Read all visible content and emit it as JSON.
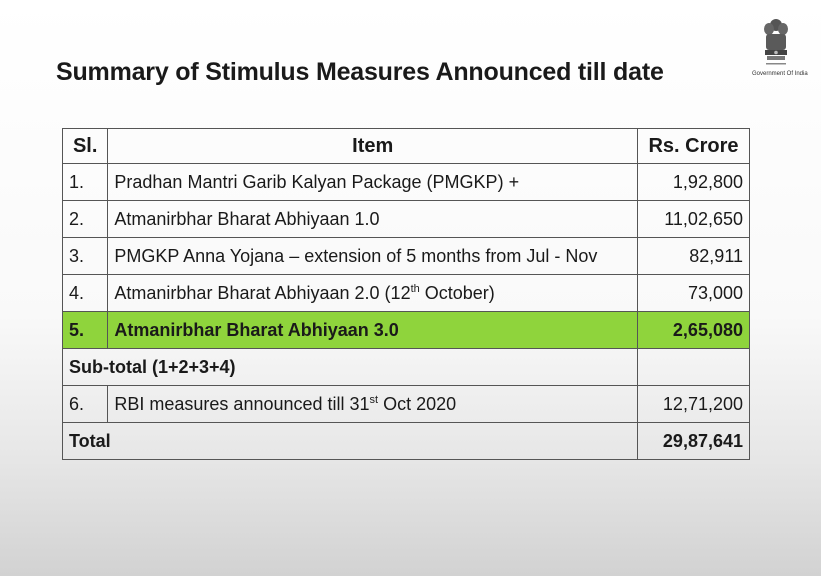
{
  "slide": {
    "title": "Summary of Stimulus Measures Announced till date",
    "emblem_caption": "Government Of India"
  },
  "table": {
    "headers": {
      "sl": "Sl.",
      "item": "Item",
      "value": "Rs. Crore"
    },
    "rows": [
      {
        "sl": "1.",
        "item": "Pradhan Mantri Garib Kalyan Package (PMGKP) +",
        "value": "1,92,800"
      },
      {
        "sl": "2.",
        "item": "Atmanirbhar Bharat Abhiyaan 1.0",
        "value": "11,02,650"
      },
      {
        "sl": "3.",
        "item": "PMGKP Anna Yojana – extension of 5 months from Jul - Nov",
        "value": "82,911"
      },
      {
        "sl": "4.",
        "item_pre": "Atmanirbhar Bharat Abhiyaan 2.0 (12",
        "item_sup": "th",
        "item_post": " October)",
        "value": "73,000"
      },
      {
        "sl": "5.",
        "item": "Atmanirbhar Bharat Abhiyaan 3.0",
        "value": "2,65,080"
      }
    ],
    "subtotal": {
      "label": "Sub-total (1+2+3+4)",
      "value": ""
    },
    "rbi": {
      "sl": "6.",
      "item_pre": "RBI measures announced till 31",
      "item_sup": "st",
      "item_post": " Oct 2020",
      "value": "12,71,200"
    },
    "total": {
      "label": "Total",
      "value": "29,87,641"
    }
  },
  "colors": {
    "highlight": "#8fd43c",
    "border": "#555555"
  }
}
